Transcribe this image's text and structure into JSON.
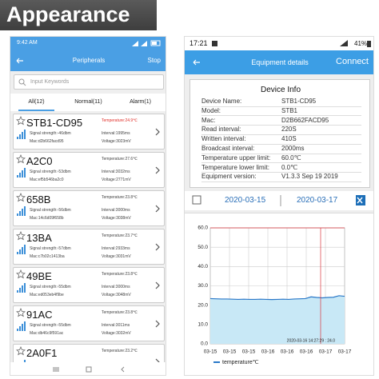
{
  "banner": {
    "title": "Appearance"
  },
  "left": {
    "status_time": "9:42 AM",
    "title": "Peripherals",
    "action": "Stop",
    "search_placeholder": "Input Keywords",
    "tabs": [
      "All(12)",
      "Normal(11)",
      "Alarm(1)"
    ],
    "devices": [
      {
        "name": "STB1-CD95",
        "signal": "Signal strength:-46dbm",
        "mac": "Mac:d2b662facd95",
        "temperature": "Temperature:24.9℃",
        "interval": "Interval:1995ms",
        "voltage": "Voltage:3023mV",
        "alarm": true
      },
      {
        "name": "A2C0",
        "signal": "Signal strength:-53dbm",
        "mac": "Mac:ef5b546ba2c0",
        "temperature": "Temperature:27.6℃",
        "interval": "Interval:3032ms",
        "voltage": "Voltage:2771mV",
        "alarm": false
      },
      {
        "name": "658B",
        "signal": "Signal strength:-56dbm",
        "mac": "Mac:14c6d09f658b",
        "temperature": "Temperature:23.8℃",
        "interval": "Interval:3000ms",
        "voltage": "Voltage:3038mV",
        "alarm": false
      },
      {
        "name": "13BA",
        "signal": "Signal strength:-57dbm",
        "mac": "Mac:c7b02c1413ba",
        "temperature": "Temperature:23.7℃",
        "interval": "Interval:2933ms",
        "voltage": "Voltage:3031mV",
        "alarm": false
      },
      {
        "name": "49BE",
        "signal": "Signal strength:-55dbm",
        "mac": "Mac:ed053eb4f9be",
        "temperature": "Temperature:23.8℃",
        "interval": "Interval:3000ms",
        "voltage": "Voltage:3048mV",
        "alarm": false
      },
      {
        "name": "91AC",
        "signal": "Signal strength:-55dbm",
        "mac": "Mac:db46c9f591ac",
        "temperature": "Temperature:23.8℃",
        "interval": "Interval:3011ms",
        "voltage": "Voltage:3032mV",
        "alarm": false
      },
      {
        "name": "2A0F1",
        "temperature": "Temperature:23.2℃",
        "alarm": false
      }
    ]
  },
  "right": {
    "status_time": "17:21",
    "battery": "41%",
    "title": "Equipment details",
    "action": "Connect",
    "info_title": "Device Info",
    "info": [
      {
        "label": "Device Name:",
        "value": "STB1-CD95"
      },
      {
        "label": "Model:",
        "value": "STB1"
      },
      {
        "label": "Mac:",
        "value": "D2B662FACD95"
      },
      {
        "label": "Read interval:",
        "value": "220S"
      },
      {
        "label": "Written interval:",
        "value": "410S"
      },
      {
        "label": "Broadcast interval:",
        "value": "2000ms"
      },
      {
        "label": "Temperature upper limit:",
        "value": "60.0℃"
      },
      {
        "label": "Temperature lower limit:",
        "value": "0.0℃"
      },
      {
        "label": "Equipment version:",
        "value": "V1.3.3 Sep 19 2019"
      }
    ],
    "date_from": "2020-03-15",
    "date_to": "2020-03-17",
    "chart": {
      "type": "line",
      "color": "#2a78c8",
      "area_color": "#c8e8f6",
      "grid": true,
      "ylim": [
        0,
        60
      ],
      "yticks": [
        {
          "value": 0,
          "label": "0.0"
        },
        {
          "value": 10,
          "label": "10.0"
        },
        {
          "value": 20,
          "label": "20.0"
        },
        {
          "value": 30,
          "label": "30.0"
        },
        {
          "value": 40,
          "label": "40.0"
        },
        {
          "value": 50,
          "label": "50.0"
        },
        {
          "value": 60,
          "label": "60.0"
        }
      ],
      "xtick_labels": [
        "03-15",
        "03-15",
        "03-15",
        "03-16",
        "03-16",
        "03-16",
        "03-17",
        "03-17"
      ],
      "values": [
        23.4,
        23.3,
        23.2,
        23.2,
        23.1,
        23.0,
        23.1,
        23.0,
        23.0,
        23.1,
        23.0,
        22.9,
        23.0,
        23.1,
        23.0,
        23.2,
        23.3,
        23.4,
        24.3,
        24.0,
        23.8,
        24.0,
        24.1,
        24.9,
        24.6
      ],
      "cursor_label": "2020-03-16 14:27:29 : 24.0",
      "legend": "temperature℃"
    }
  }
}
